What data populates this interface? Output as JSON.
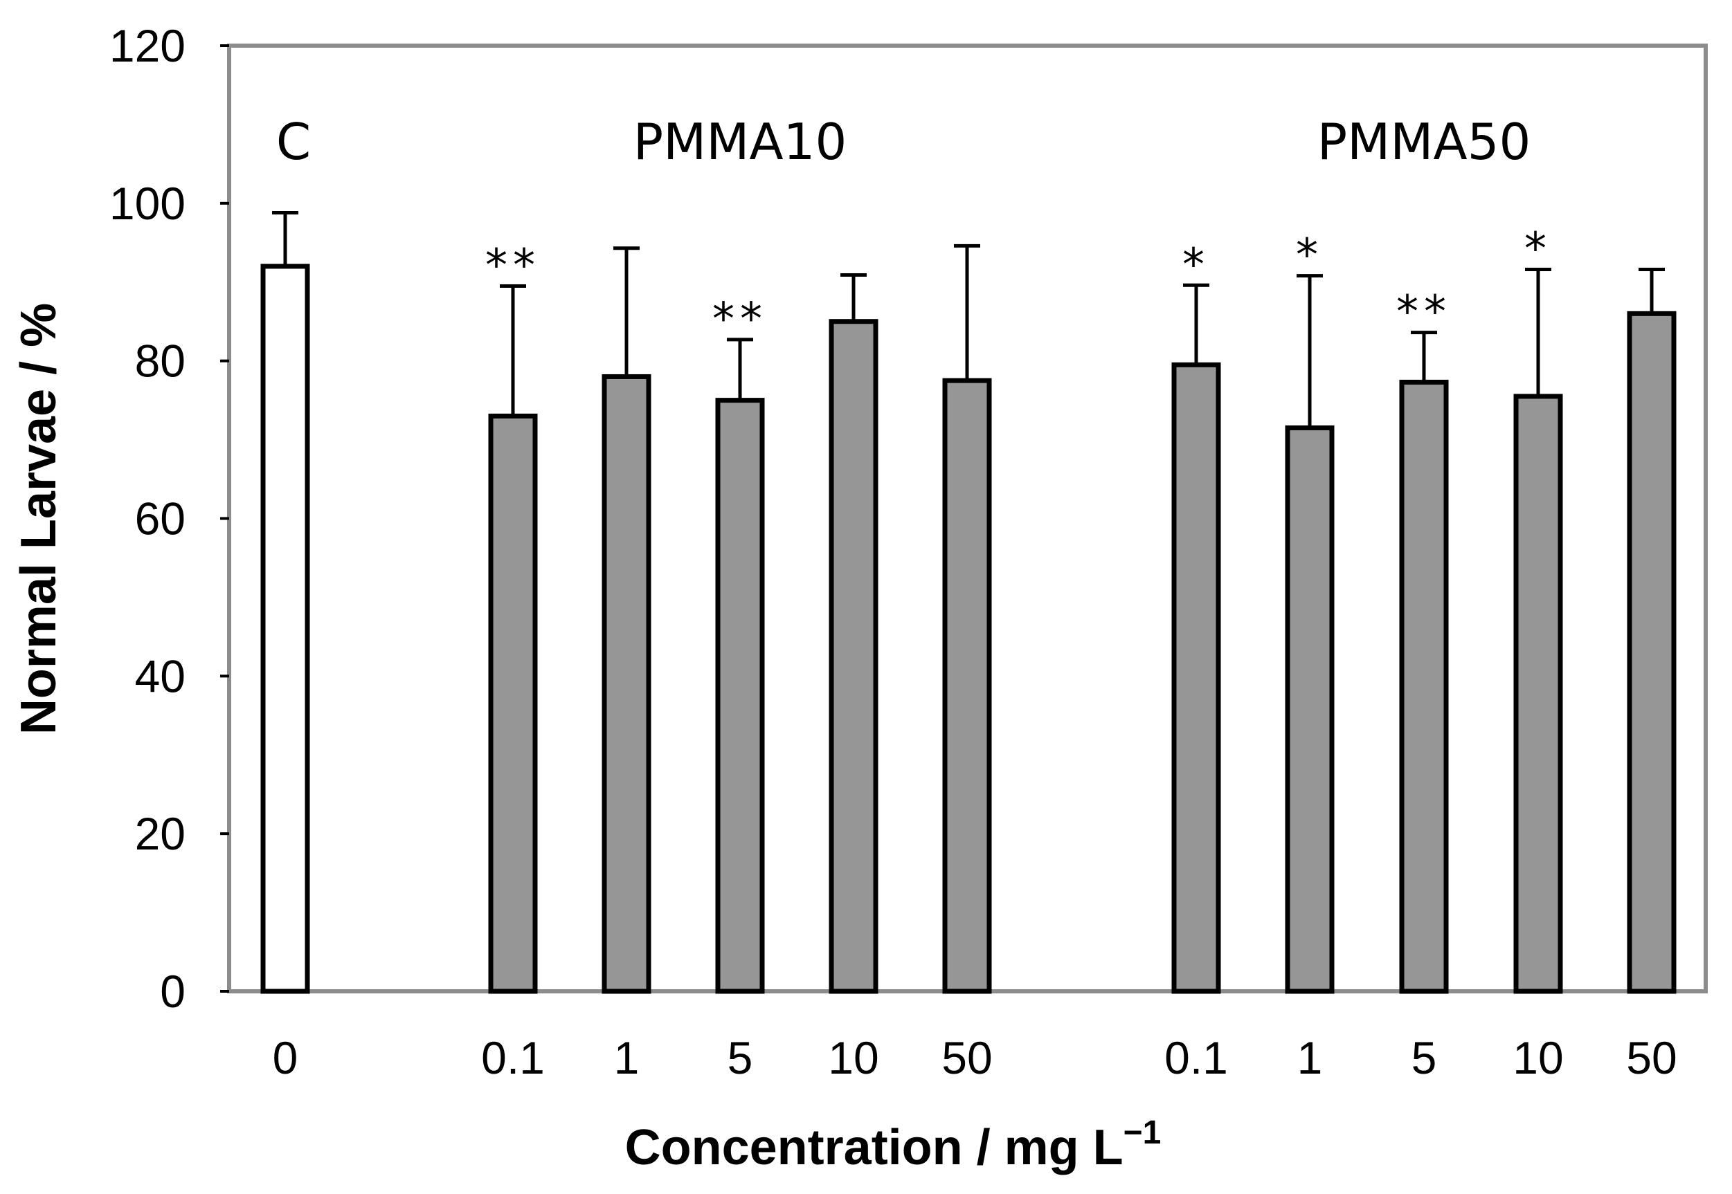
{
  "chart_data": {
    "type": "bar",
    "title": "",
    "xlabel": "Concentration / mg L",
    "xlabel_superscript": "−1",
    "ylabel": "Normal Larvae / %",
    "ylim": [
      0,
      120
    ],
    "yticks": [
      0,
      20,
      40,
      60,
      80,
      100,
      120
    ],
    "grid": false,
    "colors": {
      "control": "#ffffff",
      "treatment": "#969696",
      "outline": "#000000",
      "frame": "#8c8c8c"
    },
    "groups": [
      {
        "label": "C",
        "first_bar": 0,
        "last_bar": 0
      },
      {
        "label": "PMMA10",
        "first_bar": 1,
        "last_bar": 5
      },
      {
        "label": "PMMA50",
        "first_bar": 6,
        "last_bar": 10
      }
    ],
    "bars": [
      {
        "category": "0",
        "group": "C",
        "value": 92,
        "error": 6.8,
        "significance": "",
        "fill": "control"
      },
      {
        "category": "0.1",
        "group": "PMMA10",
        "value": 73,
        "error": 16.5,
        "significance": "**",
        "fill": "treatment"
      },
      {
        "category": "1",
        "group": "PMMA10",
        "value": 78,
        "error": 16.3,
        "significance": "",
        "fill": "treatment"
      },
      {
        "category": "5",
        "group": "PMMA10",
        "value": 75,
        "error": 7.7,
        "significance": "**",
        "fill": "treatment"
      },
      {
        "category": "10",
        "group": "PMMA10",
        "value": 85,
        "error": 5.9,
        "significance": "",
        "fill": "treatment"
      },
      {
        "category": "50",
        "group": "PMMA10",
        "value": 77.5,
        "error": 17.1,
        "significance": "",
        "fill": "treatment"
      },
      {
        "category": "0.1",
        "group": "PMMA50",
        "value": 79.5,
        "error": 10.1,
        "significance": "*",
        "fill": "treatment"
      },
      {
        "category": "1",
        "group": "PMMA50",
        "value": 71.5,
        "error": 19.3,
        "significance": "*",
        "fill": "treatment"
      },
      {
        "category": "5",
        "group": "PMMA50",
        "value": 77.3,
        "error": 6.3,
        "significance": "**",
        "fill": "treatment"
      },
      {
        "category": "10",
        "group": "PMMA50",
        "value": 75.5,
        "error": 16.1,
        "significance": "*",
        "fill": "treatment"
      },
      {
        "category": "50",
        "group": "PMMA50",
        "value": 86,
        "error": 5.6,
        "significance": "",
        "fill": "treatment"
      }
    ]
  }
}
